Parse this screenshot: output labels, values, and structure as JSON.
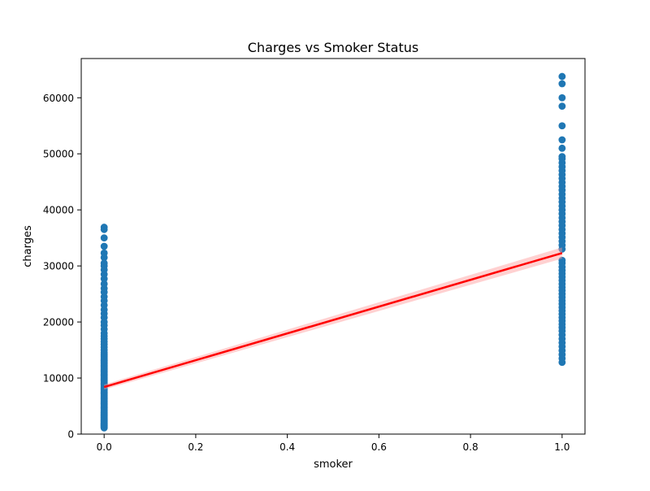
{
  "chart_data": {
    "type": "scatter",
    "title": "Charges vs Smoker Status",
    "xlabel": "smoker",
    "ylabel": "charges",
    "xlim": [
      -0.05,
      1.05
    ],
    "ylim": [
      0,
      67000
    ],
    "x_ticks": [
      0.0,
      0.2,
      0.4,
      0.6,
      0.8,
      1.0
    ],
    "x_tick_labels": [
      "0.0",
      "0.2",
      "0.4",
      "0.6",
      "0.8",
      "1.0"
    ],
    "y_ticks": [
      0,
      10000,
      20000,
      30000,
      40000,
      50000,
      60000
    ],
    "y_tick_labels": [
      "0",
      "10000",
      "20000",
      "30000",
      "40000",
      "50000",
      "60000"
    ],
    "grid": false,
    "colors": {
      "points": "#1f77b4",
      "fit_line": "#ff0000",
      "ci_band": "#ff9999"
    },
    "series": [
      {
        "x": 0,
        "y": [
          1100,
          1200,
          1300,
          1400,
          1500,
          1600,
          1700,
          1800,
          1900,
          2000,
          2150,
          2300,
          2450,
          2600,
          2750,
          2900,
          3050,
          3200,
          3350,
          3500,
          3700,
          3900,
          4100,
          4300,
          4500,
          4700,
          4900,
          5100,
          5300,
          5500,
          5700,
          5900,
          6100,
          6300,
          6500,
          6700,
          6900,
          7100,
          7300,
          7500,
          7700,
          7900,
          8100,
          8300,
          8500,
          8700,
          8900,
          9100,
          9300,
          9500,
          9700,
          9900,
          10100,
          10300,
          10500,
          10700,
          10900,
          11100,
          11300,
          11500,
          11700,
          11900,
          12100,
          12300,
          12500,
          12700,
          12900,
          13100,
          13300,
          13600,
          13900,
          14200,
          14500,
          15000,
          15500,
          16000,
          16500,
          17000,
          17500,
          18000,
          18700,
          19400,
          20000,
          20800,
          21500,
          22200,
          23000,
          23800,
          24500,
          25300,
          26000,
          26800,
          27700,
          28500,
          29300,
          30000,
          30500,
          31500,
          32300,
          33500,
          35000,
          36500,
          36900
        ]
      },
      {
        "x": 1,
        "y": [
          12800,
          13500,
          14200,
          14900,
          15600,
          16300,
          17000,
          17700,
          18400,
          19000,
          19600,
          20200,
          20800,
          21400,
          22000,
          22600,
          23200,
          23800,
          24400,
          25000,
          25600,
          26200,
          26800,
          27400,
          28000,
          28600,
          29200,
          29800,
          30500,
          31000,
          33000,
          33700,
          34400,
          35100,
          35800,
          36500,
          37200,
          37900,
          38600,
          39300,
          40000,
          40700,
          41400,
          42100,
          42800,
          43500,
          44200,
          44900,
          45600,
          46300,
          47000,
          47700,
          48400,
          49100,
          49500,
          51000,
          52500,
          55000,
          58500,
          60000,
          62500,
          63800
        ]
      }
    ],
    "fit_line": {
      "x": [
        0,
        1
      ],
      "y": [
        8400,
        32300
      ],
      "ci_halfwidth": [
        450,
        1000
      ]
    }
  }
}
